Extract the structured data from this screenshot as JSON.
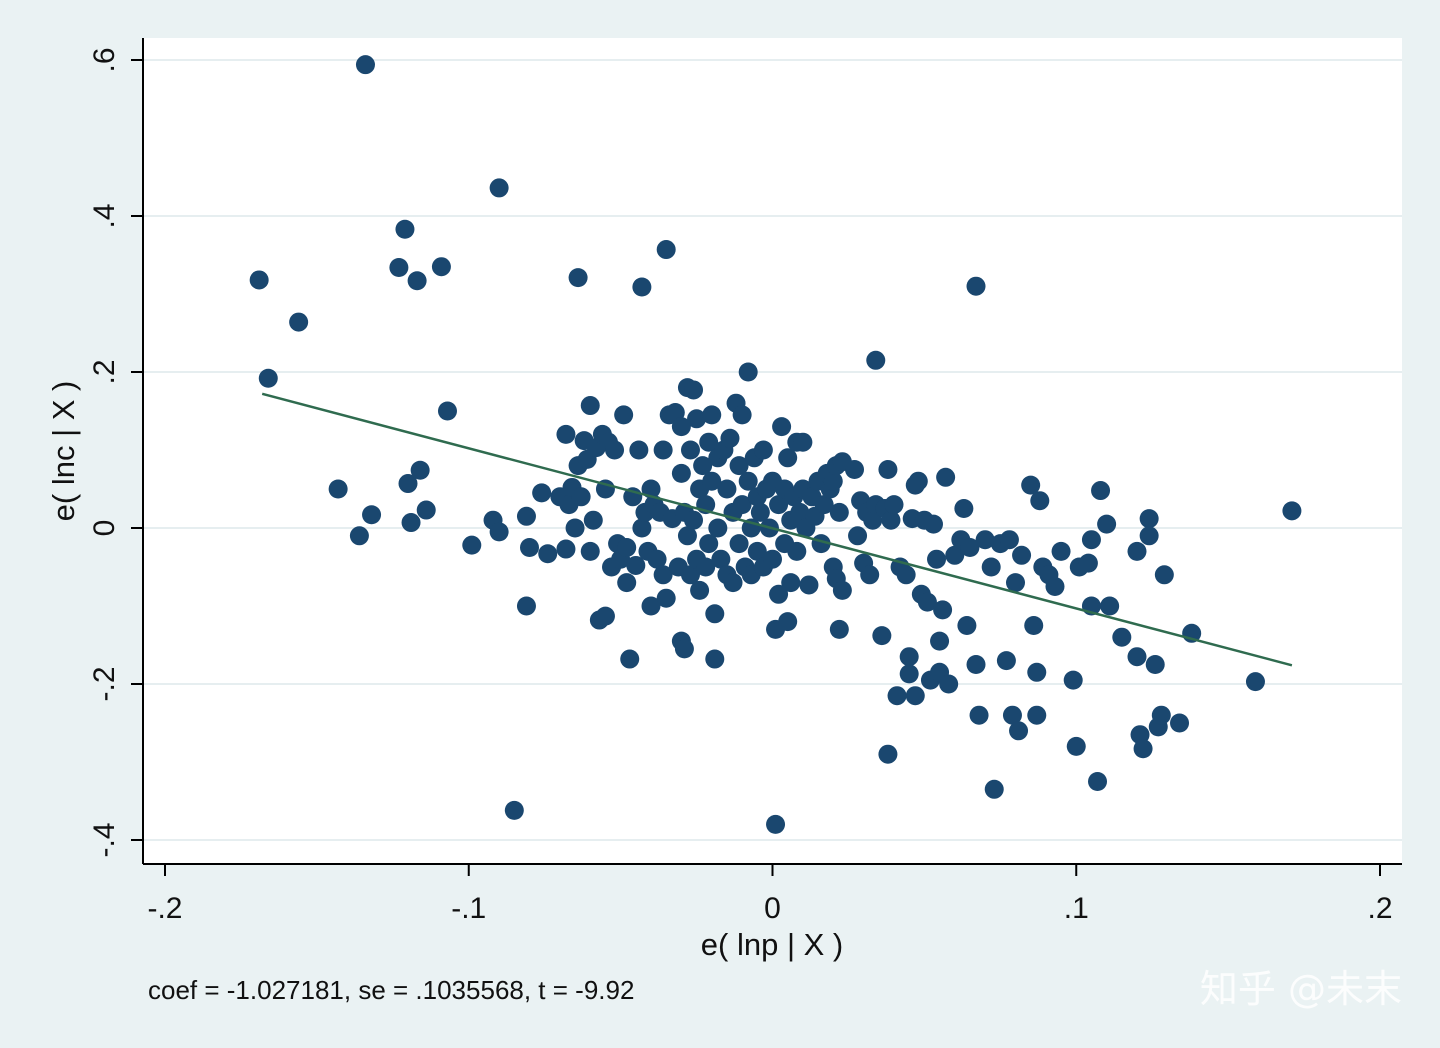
{
  "chart_data": {
    "type": "scatter",
    "title": "",
    "xlabel": "e( lnp | X )",
    "ylabel": "e( lnc | X )",
    "xlim": [
      -0.2,
      0.2
    ],
    "ylim": [
      -0.4,
      0.6
    ],
    "xticks": [
      {
        "value": -0.2,
        "label": "-.2"
      },
      {
        "value": -0.1,
        "label": "-.1"
      },
      {
        "value": 0,
        "label": "0"
      },
      {
        "value": 0.1,
        "label": ".1"
      },
      {
        "value": 0.2,
        "label": ".2"
      }
    ],
    "yticks": [
      {
        "value": -0.4,
        "label": "-.4"
      },
      {
        "value": -0.2,
        "label": "-.2"
      },
      {
        "value": 0,
        "label": "0"
      },
      {
        "value": 0.2,
        "label": ".2"
      },
      {
        "value": 0.4,
        "label": ".4"
      },
      {
        "value": 0.6,
        "label": ".6"
      }
    ],
    "grid": "horizontal",
    "note": "coef = -1.027181, se = .1035568, t = -9.92",
    "marker_color": "#1a476f",
    "fit_line_color": "#2f6b4f",
    "fit_line": {
      "x": [
        -0.168,
        0.171
      ],
      "y": [
        0.172,
        -0.176
      ]
    },
    "points": [
      [
        -0.134,
        0.594
      ],
      [
        -0.09,
        0.436
      ],
      [
        -0.121,
        0.383
      ],
      [
        -0.035,
        0.357
      ],
      [
        -0.169,
        0.318
      ],
      [
        -0.123,
        0.334
      ],
      [
        -0.117,
        0.317
      ],
      [
        -0.109,
        0.335
      ],
      [
        -0.156,
        0.264
      ],
      [
        -0.064,
        0.321
      ],
      [
        -0.043,
        0.309
      ],
      [
        0.067,
        0.31
      ],
      [
        0.034,
        0.215
      ],
      [
        -0.166,
        0.192
      ],
      [
        -0.107,
        0.15
      ],
      [
        -0.143,
        0.05
      ],
      [
        -0.132,
        0.017
      ],
      [
        -0.136,
        -0.01
      ],
      [
        -0.12,
        0.057
      ],
      [
        -0.116,
        0.074
      ],
      [
        -0.119,
        0.007
      ],
      [
        -0.114,
        0.023
      ],
      [
        -0.092,
        0.01
      ],
      [
        -0.09,
        -0.005
      ],
      [
        -0.099,
        -0.022
      ],
      [
        -0.085,
        -0.362
      ],
      [
        -0.081,
        -0.1
      ],
      [
        -0.081,
        0.015
      ],
      [
        -0.08,
        -0.025
      ],
      [
        -0.076,
        0.045
      ],
      [
        -0.074,
        -0.033
      ],
      [
        -0.07,
        0.04
      ],
      [
        -0.068,
        0.12
      ],
      [
        -0.068,
        -0.027
      ],
      [
        -0.067,
        0.03
      ],
      [
        -0.066,
        0.052
      ],
      [
        -0.065,
        0.0
      ],
      [
        -0.064,
        0.08
      ],
      [
        -0.063,
        0.04
      ],
      [
        -0.062,
        0.112
      ],
      [
        -0.061,
        0.088
      ],
      [
        -0.06,
        0.157
      ],
      [
        -0.06,
        -0.03
      ],
      [
        -0.059,
        0.01
      ],
      [
        -0.058,
        0.103
      ],
      [
        -0.057,
        -0.118
      ],
      [
        -0.056,
        0.12
      ],
      [
        -0.055,
        0.05
      ],
      [
        -0.055,
        -0.113
      ],
      [
        -0.054,
        0.11
      ],
      [
        -0.053,
        -0.05
      ],
      [
        -0.052,
        0.1
      ],
      [
        -0.051,
        -0.02
      ],
      [
        -0.05,
        -0.04
      ],
      [
        -0.049,
        0.145
      ],
      [
        -0.048,
        -0.025
      ],
      [
        -0.048,
        -0.07
      ],
      [
        -0.047,
        -0.168
      ],
      [
        -0.046,
        0.04
      ],
      [
        -0.045,
        -0.048
      ],
      [
        -0.044,
        0.1
      ],
      [
        -0.043,
        0.0
      ],
      [
        -0.042,
        0.02
      ],
      [
        -0.041,
        -0.03
      ],
      [
        -0.04,
        0.05
      ],
      [
        -0.04,
        -0.1
      ],
      [
        -0.039,
        0.03
      ],
      [
        -0.038,
        -0.04
      ],
      [
        -0.037,
        0.02
      ],
      [
        -0.036,
        0.1
      ],
      [
        -0.036,
        -0.06
      ],
      [
        -0.035,
        -0.09
      ],
      [
        -0.034,
        0.145
      ],
      [
        -0.033,
        0.012
      ],
      [
        -0.032,
        0.148
      ],
      [
        -0.031,
        -0.05
      ],
      [
        -0.03,
        0.07
      ],
      [
        -0.03,
        -0.145
      ],
      [
        -0.03,
        0.13
      ],
      [
        -0.029,
        -0.155
      ],
      [
        -0.029,
        0.02
      ],
      [
        -0.028,
        0.18
      ],
      [
        -0.028,
        -0.01
      ],
      [
        -0.027,
        0.1
      ],
      [
        -0.027,
        -0.06
      ],
      [
        -0.026,
        0.177
      ],
      [
        -0.026,
        0.01
      ],
      [
        -0.025,
        -0.04
      ],
      [
        -0.025,
        0.14
      ],
      [
        -0.024,
        0.05
      ],
      [
        -0.024,
        -0.08
      ],
      [
        -0.023,
        0.08
      ],
      [
        -0.022,
        0.03
      ],
      [
        -0.022,
        -0.05
      ],
      [
        -0.021,
        0.11
      ],
      [
        -0.021,
        -0.02
      ],
      [
        -0.02,
        0.145
      ],
      [
        -0.02,
        0.06
      ],
      [
        -0.019,
        -0.11
      ],
      [
        -0.019,
        -0.168
      ],
      [
        -0.018,
        0.09
      ],
      [
        -0.018,
        0.0
      ],
      [
        -0.017,
        -0.04
      ],
      [
        -0.016,
        0.1
      ],
      [
        -0.015,
        0.05
      ],
      [
        -0.015,
        -0.06
      ],
      [
        -0.014,
        0.115
      ],
      [
        -0.013,
        0.02
      ],
      [
        -0.013,
        -0.07
      ],
      [
        -0.012,
        0.16
      ],
      [
        -0.011,
        0.08
      ],
      [
        -0.011,
        -0.02
      ],
      [
        -0.01,
        0.145
      ],
      [
        -0.01,
        0.03
      ],
      [
        -0.009,
        -0.05
      ],
      [
        -0.008,
        0.06
      ],
      [
        -0.008,
        0.2
      ],
      [
        -0.007,
        0.0
      ],
      [
        -0.007,
        -0.06
      ],
      [
        -0.006,
        0.09
      ],
      [
        -0.005,
        0.04
      ],
      [
        -0.005,
        -0.03
      ],
      [
        -0.004,
        0.02
      ],
      [
        -0.003,
        0.1
      ],
      [
        -0.003,
        -0.05
      ],
      [
        -0.002,
        0.05
      ],
      [
        -0.001,
        0.0
      ],
      [
        0.0,
        0.06
      ],
      [
        0.0,
        -0.04
      ],
      [
        0.001,
        -0.38
      ],
      [
        0.001,
        -0.13
      ],
      [
        0.002,
        0.03
      ],
      [
        0.002,
        -0.085
      ],
      [
        0.003,
        0.13
      ],
      [
        0.004,
        0.05
      ],
      [
        0.004,
        -0.02
      ],
      [
        0.005,
        0.09
      ],
      [
        0.005,
        -0.12
      ],
      [
        0.006,
        0.01
      ],
      [
        0.006,
        -0.07
      ],
      [
        0.007,
        0.04
      ],
      [
        0.008,
        0.11
      ],
      [
        0.008,
        -0.03
      ],
      [
        0.009,
        0.02
      ],
      [
        0.01,
        0.05
      ],
      [
        0.01,
        0.11
      ],
      [
        0.011,
        0.0
      ],
      [
        0.012,
        -0.073
      ],
      [
        0.013,
        0.04
      ],
      [
        0.014,
        0.015
      ],
      [
        0.015,
        0.06
      ],
      [
        0.016,
        -0.02
      ],
      [
        0.017,
        0.03
      ],
      [
        0.018,
        0.07
      ],
      [
        0.019,
        0.05
      ],
      [
        0.02,
        0.06
      ],
      [
        0.02,
        -0.05
      ],
      [
        0.021,
        0.08
      ],
      [
        0.021,
        -0.065
      ],
      [
        0.022,
        0.02
      ],
      [
        0.023,
        -0.08
      ],
      [
        0.023,
        0.085
      ],
      [
        0.022,
        -0.13
      ],
      [
        0.027,
        0.075
      ],
      [
        0.028,
        -0.01
      ],
      [
        0.029,
        0.035
      ],
      [
        0.03,
        -0.045
      ],
      [
        0.031,
        0.02
      ],
      [
        0.032,
        -0.06
      ],
      [
        0.033,
        0.01
      ],
      [
        0.034,
        0.03
      ],
      [
        0.036,
        -0.138
      ],
      [
        0.037,
        0.025
      ],
      [
        0.038,
        0.075
      ],
      [
        0.038,
        -0.29
      ],
      [
        0.039,
        0.01
      ],
      [
        0.04,
        0.03
      ],
      [
        0.041,
        -0.215
      ],
      [
        0.042,
        -0.05
      ],
      [
        0.044,
        -0.06
      ],
      [
        0.045,
        -0.165
      ],
      [
        0.045,
        -0.187
      ],
      [
        0.046,
        0.012
      ],
      [
        0.047,
        -0.215
      ],
      [
        0.047,
        0.055
      ],
      [
        0.048,
        0.06
      ],
      [
        0.049,
        -0.085
      ],
      [
        0.05,
        0.01
      ],
      [
        0.051,
        -0.095
      ],
      [
        0.052,
        -0.195
      ],
      [
        0.053,
        0.005
      ],
      [
        0.054,
        -0.04
      ],
      [
        0.055,
        -0.185
      ],
      [
        0.055,
        -0.145
      ],
      [
        0.056,
        -0.105
      ],
      [
        0.057,
        0.065
      ],
      [
        0.058,
        -0.2
      ],
      [
        0.06,
        -0.035
      ],
      [
        0.062,
        -0.015
      ],
      [
        0.063,
        0.025
      ],
      [
        0.064,
        -0.125
      ],
      [
        0.065,
        -0.025
      ],
      [
        0.067,
        -0.175
      ],
      [
        0.068,
        -0.24
      ],
      [
        0.07,
        -0.015
      ],
      [
        0.072,
        -0.05
      ],
      [
        0.073,
        -0.335
      ],
      [
        0.075,
        -0.02
      ],
      [
        0.077,
        -0.17
      ],
      [
        0.078,
        -0.015
      ],
      [
        0.079,
        -0.24
      ],
      [
        0.08,
        -0.07
      ],
      [
        0.081,
        -0.26
      ],
      [
        0.082,
        -0.035
      ],
      [
        0.085,
        0.055
      ],
      [
        0.086,
        -0.125
      ],
      [
        0.087,
        -0.185
      ],
      [
        0.087,
        -0.24
      ],
      [
        0.088,
        0.035
      ],
      [
        0.089,
        -0.05
      ],
      [
        0.091,
        -0.06
      ],
      [
        0.093,
        -0.075
      ],
      [
        0.095,
        -0.03
      ],
      [
        0.099,
        -0.195
      ],
      [
        0.1,
        -0.28
      ],
      [
        0.101,
        -0.05
      ],
      [
        0.104,
        -0.045
      ],
      [
        0.105,
        -0.1
      ],
      [
        0.105,
        -0.015
      ],
      [
        0.107,
        -0.325
      ],
      [
        0.108,
        0.048
      ],
      [
        0.11,
        0.005
      ],
      [
        0.111,
        -0.1
      ],
      [
        0.115,
        -0.14
      ],
      [
        0.12,
        -0.165
      ],
      [
        0.12,
        -0.03
      ],
      [
        0.121,
        -0.265
      ],
      [
        0.122,
        -0.283
      ],
      [
        0.124,
        0.012
      ],
      [
        0.124,
        -0.01
      ],
      [
        0.126,
        -0.175
      ],
      [
        0.127,
        -0.255
      ],
      [
        0.128,
        -0.24
      ],
      [
        0.129,
        -0.06
      ],
      [
        0.134,
        -0.25
      ],
      [
        0.138,
        -0.135
      ],
      [
        0.159,
        -0.197
      ],
      [
        0.171,
        0.022
      ]
    ]
  },
  "watermark": "知乎 @未末"
}
